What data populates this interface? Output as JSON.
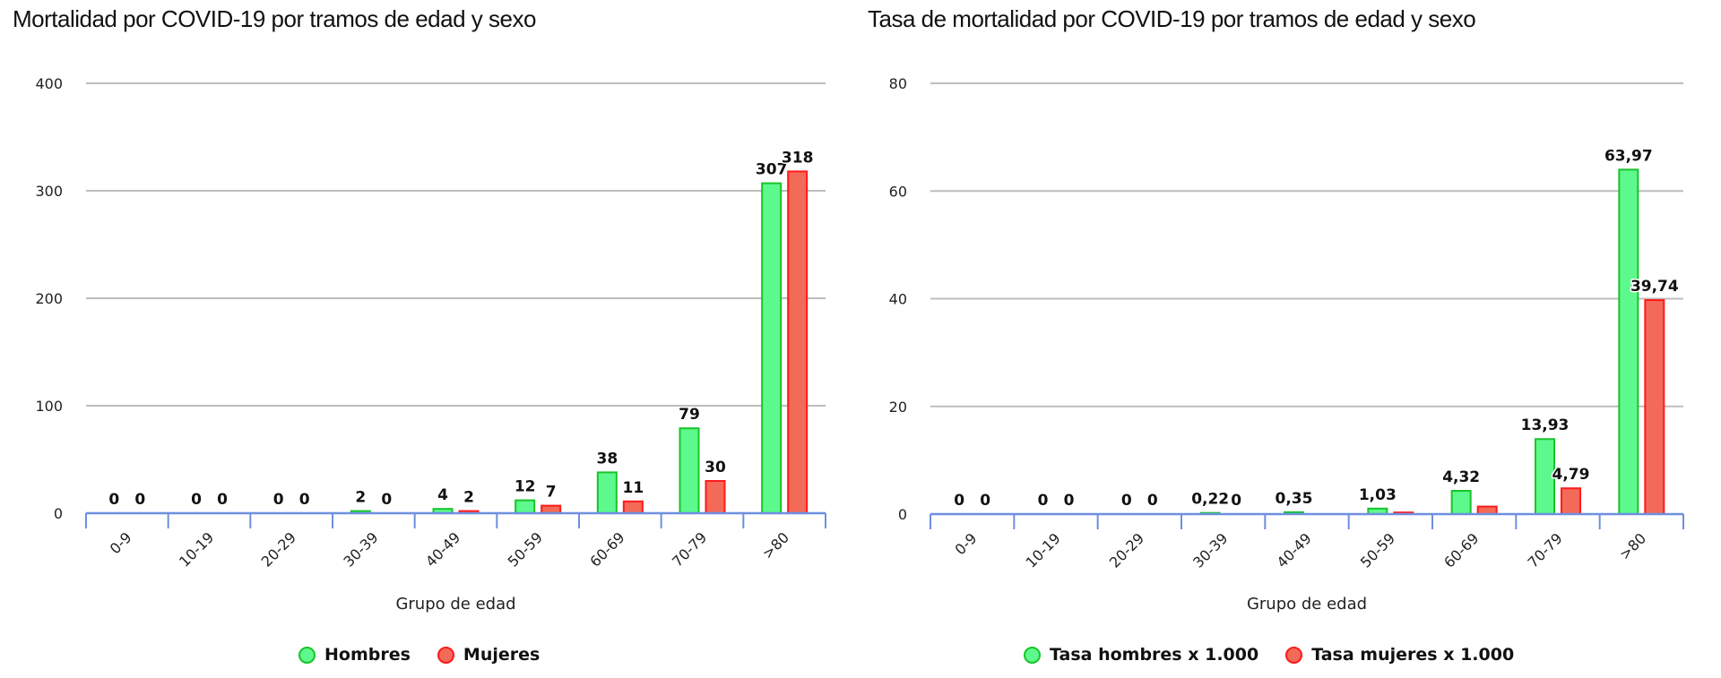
{
  "colors": {
    "hombres_fill": "#5ef98c",
    "hombres_stroke": "#18c42a",
    "mujeres_fill": "#f36a58",
    "mujeres_stroke": "#ff1a1a",
    "grid": "#bdbdbd",
    "axis": "#6e8fe0"
  },
  "left": {
    "title": "Mortalidad por COVID-19 por tramos de edad y sexo",
    "xlabel": "Grupo de edad",
    "legend": [
      "Hombres",
      "Mujeres"
    ]
  },
  "right": {
    "title": "Tasa de mortalidad por COVID-19 por tramos de edad y sexo",
    "xlabel": "Grupo de edad",
    "legend": [
      "Tasa hombres x 1.000",
      "Tasa mujeres x 1.000"
    ]
  },
  "chart_data": [
    {
      "type": "bar",
      "title": "Mortalidad por COVID-19 por tramos de edad y sexo",
      "xlabel": "Grupo de edad",
      "ylabel": "",
      "ylim": [
        0,
        400
      ],
      "yticks": [
        0,
        100,
        200,
        300,
        400
      ],
      "grid": true,
      "legend_position": "bottom",
      "categories": [
        "0-9",
        "10-19",
        "20-29",
        "30-39",
        "40-49",
        "50-59",
        "60-69",
        "70-79",
        ">80"
      ],
      "series": [
        {
          "name": "Hombres",
          "values": [
            0,
            0,
            0,
            2,
            4,
            12,
            38,
            79,
            307
          ],
          "labels": [
            "0",
            "0",
            "0",
            "2",
            "4",
            "12",
            "38",
            "79",
            "307"
          ]
        },
        {
          "name": "Mujeres",
          "values": [
            0,
            0,
            0,
            0,
            2,
            7,
            11,
            30,
            318
          ],
          "labels": [
            "0",
            "0",
            "0",
            "0",
            "2",
            "7",
            "11",
            "30",
            "318"
          ]
        }
      ]
    },
    {
      "type": "bar",
      "title": "Tasa de mortalidad por COVID-19 por tramos de edad y sexo",
      "xlabel": "Grupo de edad",
      "ylabel": "",
      "ylim": [
        0,
        80
      ],
      "yticks": [
        0,
        20,
        40,
        60,
        80
      ],
      "grid": true,
      "legend_position": "bottom",
      "categories": [
        "0-9",
        "10-19",
        "20-29",
        "30-39",
        "40-49",
        "50-59",
        "60-69",
        "70-79",
        ">80"
      ],
      "series": [
        {
          "name": "Tasa hombres x 1.000",
          "values": [
            0,
            0,
            0,
            0.22,
            0.35,
            1.03,
            4.32,
            13.93,
            63.97
          ],
          "labels": [
            "0",
            "0",
            "0",
            "0,22",
            "0,35",
            "1,03",
            "4,32",
            "13,93",
            "63,97"
          ]
        },
        {
          "name": "Tasa mujeres x 1.000",
          "values": [
            0,
            0,
            0,
            0,
            0,
            0.3,
            1.4,
            4.79,
            39.74
          ],
          "labels": [
            "0",
            "0",
            "0",
            "0",
            "",
            "",
            "",
            "4,79",
            "39,74"
          ]
        }
      ]
    }
  ]
}
